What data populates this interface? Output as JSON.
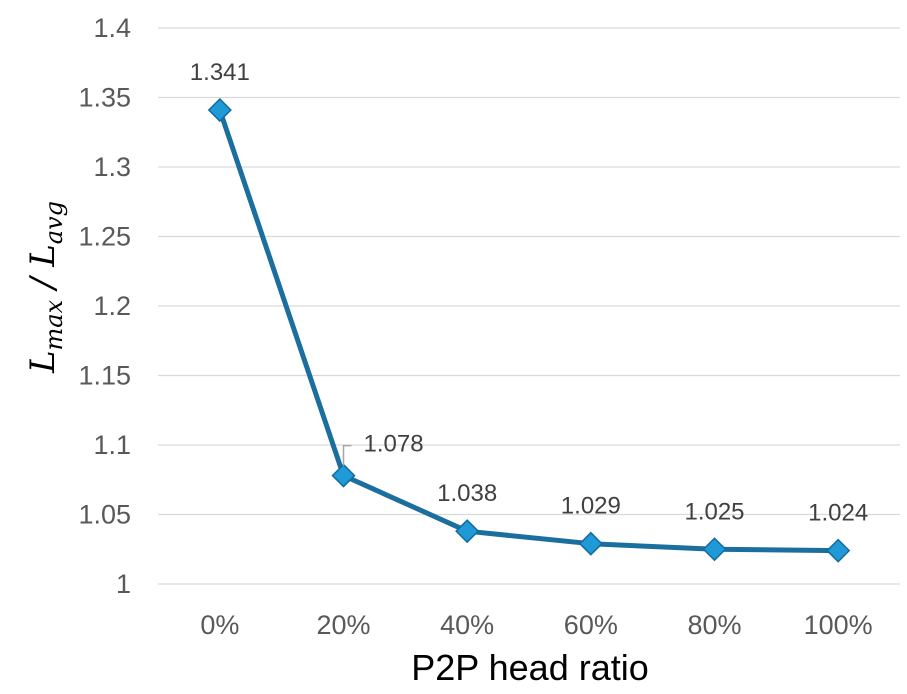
{
  "chart_data": {
    "type": "line",
    "categories": [
      "0%",
      "20%",
      "40%",
      "60%",
      "80%",
      "100%"
    ],
    "series": [
      {
        "values": [
          1.341,
          1.078,
          1.038,
          1.029,
          1.025,
          1.024
        ]
      }
    ],
    "data_labels": [
      "1.341",
      "1.078",
      "1.038",
      "1.029",
      "1.025",
      "1.024"
    ],
    "xlabel": "P2P head ratio",
    "ylabel": {
      "main1": "L",
      "sub1": "max",
      "sep": " / ",
      "main2": "L",
      "sub2": "avg"
    },
    "ylim": [
      1,
      1.4
    ],
    "ytick_labels": [
      "1",
      "1.05",
      "1.1",
      "1.15",
      "1.2",
      "1.25",
      "1.3",
      "1.35",
      "1.4"
    ],
    "grid": true,
    "legend": "none",
    "colors": {
      "line": "#1b6f9e",
      "marker_fill": "#1f9ad6",
      "marker_stroke": "#136aa0",
      "grid": "#d9d9d9"
    }
  }
}
